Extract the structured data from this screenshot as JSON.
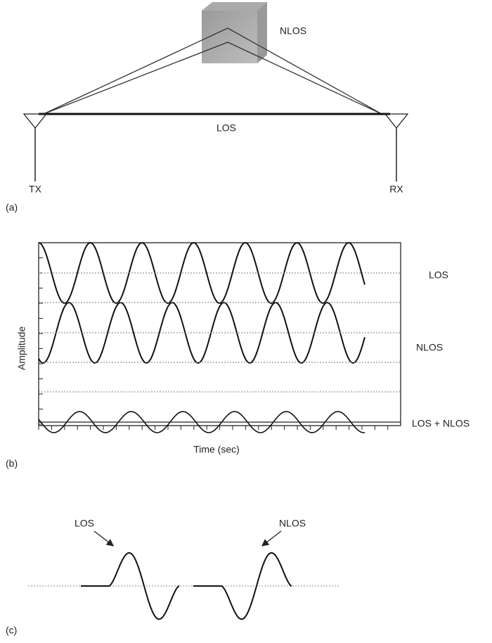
{
  "panel_a": {
    "label": "(a)",
    "obstacle": "NLOS",
    "direct_path": "LOS",
    "transmitter": "TX",
    "receiver": "RX"
  },
  "panel_b": {
    "label": "(b)",
    "y_axis": "Amplitude",
    "x_axis": "Time (sec)",
    "traces": [
      "LOS",
      "NLOS",
      "LOS + NLOS"
    ]
  },
  "panel_c": {
    "label": "(c)",
    "pulses": [
      "LOS",
      "NLOS"
    ]
  }
}
